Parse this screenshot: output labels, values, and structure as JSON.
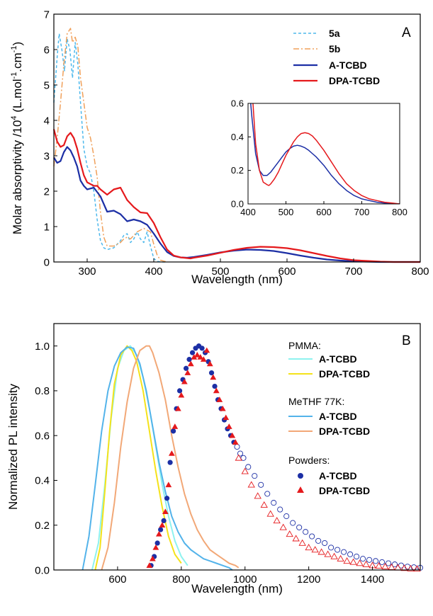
{
  "chart_data": [
    {
      "type": "line",
      "panel_label": "A",
      "xlabel": "Wavelength (nm)",
      "ylabel": "Molar absorptivity /10",
      "ylabel_sup1": "4",
      "ylabel_mid": " (L.mol",
      "ylabel_sup2": "-1",
      "ylabel_mid2": ".cm",
      "ylabel_sup3": "-1",
      "ylabel_end": ")",
      "xlim": [
        250,
        800
      ],
      "ylim": [
        0,
        7
      ],
      "xticks": [
        300,
        400,
        500,
        600,
        700,
        800
      ],
      "yticks": [
        0,
        1,
        2,
        3,
        4,
        5,
        6,
        7
      ],
      "legend_position": "top-right",
      "series": [
        {
          "name": "5a",
          "color": "#4db8ec",
          "dash": "4,3",
          "x": [
            250,
            255,
            258,
            262,
            266,
            270,
            274,
            278,
            282,
            286,
            290,
            295,
            300,
            305,
            310,
            315,
            320,
            325,
            330,
            340,
            350,
            355,
            360,
            365,
            370,
            375,
            380,
            385,
            390,
            395,
            400,
            405,
            410,
            420
          ],
          "y": [
            4.5,
            5.8,
            6.45,
            6.0,
            5.4,
            6.3,
            6.0,
            5.2,
            6.2,
            5.6,
            4.5,
            3.2,
            2.7,
            2.5,
            2.0,
            1.2,
            0.6,
            0.4,
            0.35,
            0.4,
            0.6,
            0.75,
            0.8,
            0.55,
            0.65,
            0.85,
            0.65,
            0.55,
            0.85,
            0.45,
            0.1,
            0.02,
            0,
            0
          ]
        },
        {
          "name": "5b",
          "color": "#f0a05a",
          "dash": "8,3,2,3",
          "x": [
            250,
            255,
            260,
            265,
            270,
            275,
            278,
            282,
            286,
            290,
            295,
            300,
            305,
            310,
            315,
            320,
            325,
            330,
            340,
            350,
            355,
            360,
            365,
            370,
            375,
            380,
            385,
            390,
            395,
            400,
            405,
            410,
            420
          ],
          "y": [
            2.7,
            3.5,
            4.5,
            5.6,
            6.45,
            6.6,
            6.2,
            6.35,
            6.1,
            5.2,
            4.5,
            3.8,
            3.5,
            3.0,
            2.4,
            1.4,
            0.7,
            0.45,
            0.45,
            0.55,
            0.65,
            0.7,
            0.65,
            0.75,
            0.85,
            0.9,
            0.95,
            0.9,
            0.85,
            0.5,
            0.2,
            0.05,
            0
          ]
        },
        {
          "name": "A-TCBD",
          "color": "#1c2fa5",
          "dash": "",
          "x": [
            250,
            255,
            260,
            265,
            270,
            275,
            280,
            285,
            290,
            295,
            300,
            310,
            320,
            330,
            340,
            350,
            360,
            370,
            380,
            390,
            400,
            410,
            420,
            430,
            440,
            450,
            460,
            480,
            500,
            520,
            540,
            560,
            580,
            600,
            620,
            640,
            660,
            680,
            700,
            720,
            740,
            760,
            780,
            800
          ],
          "y": [
            2.95,
            2.8,
            2.85,
            3.1,
            3.25,
            3.15,
            2.95,
            2.7,
            2.3,
            2.15,
            2.05,
            2.1,
            1.85,
            1.42,
            1.45,
            1.35,
            1.15,
            1.2,
            1.15,
            1.05,
            0.8,
            0.52,
            0.28,
            0.17,
            0.13,
            0.12,
            0.14,
            0.2,
            0.27,
            0.32,
            0.35,
            0.34,
            0.31,
            0.25,
            0.18,
            0.12,
            0.07,
            0.04,
            0.02,
            0.01,
            0,
            0,
            0,
            0
          ]
        },
        {
          "name": "DPA-TCBD",
          "color": "#e5191c",
          "dash": "",
          "x": [
            250,
            255,
            260,
            265,
            270,
            275,
            280,
            285,
            290,
            295,
            300,
            310,
            315,
            320,
            330,
            340,
            350,
            360,
            370,
            380,
            390,
            400,
            410,
            420,
            430,
            440,
            450,
            455,
            460,
            480,
            500,
            520,
            540,
            560,
            580,
            600,
            620,
            640,
            660,
            680,
            700,
            720,
            740,
            760,
            780,
            800
          ],
          "y": [
            3.75,
            3.4,
            3.25,
            3.3,
            3.55,
            3.65,
            3.5,
            3.2,
            2.8,
            2.45,
            2.25,
            2.15,
            2.15,
            2.05,
            1.9,
            2.05,
            2.1,
            1.75,
            1.55,
            1.4,
            1.38,
            1.1,
            0.7,
            0.35,
            0.18,
            0.13,
            0.11,
            0.1,
            0.12,
            0.18,
            0.26,
            0.34,
            0.4,
            0.43,
            0.42,
            0.39,
            0.33,
            0.25,
            0.17,
            0.1,
            0.05,
            0.03,
            0.01,
            0,
            0,
            0
          ]
        }
      ],
      "inset": {
        "xlim": [
          400,
          800
        ],
        "ylim": [
          0,
          0.6
        ],
        "xticks": [
          400,
          500,
          600,
          700,
          800
        ],
        "yticks": [
          0.0,
          0.2,
          0.4,
          0.6
        ],
        "ytick_labels": [
          "0.0",
          "0.2",
          "0.4",
          "0.6"
        ],
        "series": [
          {
            "name": "A-TCBD",
            "color": "#1c2fa5",
            "x": [
              400,
              410,
              420,
              430,
              440,
              450,
              460,
              470,
              480,
              490,
              500,
              510,
              520,
              530,
              540,
              550,
              560,
              570,
              580,
              600,
              620,
              640,
              660,
              680,
              700,
              720,
              740,
              760,
              780,
              800
            ],
            "y": [
              0.78,
              0.52,
              0.3,
              0.2,
              0.17,
              0.17,
              0.19,
              0.22,
              0.25,
              0.28,
              0.31,
              0.33,
              0.345,
              0.35,
              0.345,
              0.335,
              0.32,
              0.3,
              0.28,
              0.23,
              0.17,
              0.12,
              0.08,
              0.05,
              0.03,
              0.02,
              0.01,
              0.005,
              0,
              0
            ]
          },
          {
            "name": "DPA-TCBD",
            "color": "#e5191c",
            "x": [
              400,
              410,
              420,
              430,
              440,
              450,
              455,
              460,
              470,
              480,
              490,
              500,
              510,
              520,
              530,
              540,
              550,
              560,
              570,
              580,
              600,
              620,
              640,
              660,
              680,
              700,
              720,
              740,
              760,
              780,
              800
            ],
            "y": [
              1.1,
              0.7,
              0.36,
              0.2,
              0.13,
              0.115,
              0.11,
              0.12,
              0.15,
              0.19,
              0.24,
              0.29,
              0.33,
              0.37,
              0.4,
              0.42,
              0.425,
              0.42,
              0.405,
              0.38,
              0.32,
              0.25,
              0.18,
              0.12,
              0.08,
              0.05,
              0.03,
              0.02,
              0.01,
              0.005,
              0
            ]
          }
        ]
      }
    },
    {
      "type": "line",
      "panel_label": "B",
      "xlabel": "Wavelength (nm)",
      "ylabel": "Normalized PL intensity",
      "xlim": [
        400,
        1550
      ],
      "ylim": [
        0,
        1.1
      ],
      "xticks": [
        600,
        800,
        1000,
        1200,
        1400
      ],
      "yticks": [
        0.0,
        0.2,
        0.4,
        0.6,
        0.8,
        1.0
      ],
      "ytick_labels": [
        "0.0",
        "0.2",
        "0.4",
        "0.6",
        "0.8",
        "1.0"
      ],
      "legend_position": "top-right",
      "legend_groups": [
        {
          "title": "PMMA:",
          "entries": [
            {
              "name": "A-TCBD",
              "color": "#8ef2ef",
              "marker": "line"
            },
            {
              "name": "DPA-TCBD",
              "color": "#f4e21a",
              "marker": "line"
            }
          ]
        },
        {
          "title": "MeTHF 77K:",
          "entries": [
            {
              "name": "A-TCBD",
              "color": "#53b3ea",
              "marker": "line"
            },
            {
              "name": "DPA-TCBD",
              "color": "#f2a877",
              "marker": "line"
            }
          ]
        },
        {
          "title": "Powders:",
          "entries": [
            {
              "name": "A-TCBD",
              "color": "#1c2fa5",
              "marker": "circle"
            },
            {
              "name": "DPA-TCBD",
              "color": "#e5191c",
              "marker": "triangle"
            }
          ]
        }
      ],
      "series": [
        {
          "name": "PMMA: A-TCBD",
          "color": "#8ef2ef",
          "style": "line",
          "x": [
            520,
            540,
            560,
            580,
            600,
            620,
            640,
            660,
            680,
            700,
            720,
            740,
            760,
            780,
            800,
            820
          ],
          "y": [
            0,
            0.12,
            0.38,
            0.68,
            0.9,
            0.98,
            1.0,
            0.96,
            0.86,
            0.72,
            0.55,
            0.38,
            0.24,
            0.13,
            0.06,
            0.02
          ]
        },
        {
          "name": "PMMA: DPA-TCBD",
          "color": "#f4e21a",
          "style": "line",
          "x": [
            530,
            545,
            560,
            575,
            590,
            610,
            630,
            645,
            660,
            680,
            700,
            720,
            740,
            760,
            780,
            800
          ],
          "y": [
            0,
            0.1,
            0.35,
            0.62,
            0.83,
            0.96,
            1.0,
            0.98,
            0.93,
            0.8,
            0.62,
            0.44,
            0.28,
            0.15,
            0.07,
            0.03
          ]
        },
        {
          "name": "MeTHF 77K: A-TCBD",
          "color": "#53b3ea",
          "style": "line",
          "x": [
            490,
            510,
            530,
            550,
            570,
            590,
            610,
            630,
            650,
            670,
            690,
            710,
            730,
            750,
            770,
            790,
            810,
            830,
            850,
            870,
            890,
            910,
            930,
            950,
            960
          ],
          "y": [
            0,
            0.15,
            0.38,
            0.62,
            0.8,
            0.91,
            0.97,
            0.995,
            0.99,
            0.92,
            0.8,
            0.64,
            0.48,
            0.35,
            0.24,
            0.17,
            0.12,
            0.09,
            0.07,
            0.05,
            0.04,
            0.03,
            0.02,
            0.01,
            0
          ]
        },
        {
          "name": "MeTHF 77K: DPA-TCBD",
          "color": "#f2a877",
          "style": "line",
          "x": [
            550,
            570,
            590,
            610,
            630,
            650,
            670,
            690,
            700,
            710,
            730,
            750,
            770,
            790,
            810,
            830,
            850,
            870,
            890,
            910,
            930,
            950,
            970,
            980
          ],
          "y": [
            0,
            0.1,
            0.3,
            0.55,
            0.75,
            0.9,
            0.98,
            1.0,
            1.0,
            0.97,
            0.88,
            0.76,
            0.6,
            0.46,
            0.34,
            0.25,
            0.18,
            0.13,
            0.09,
            0.07,
            0.05,
            0.03,
            0.02,
            0.01
          ]
        },
        {
          "name": "Powders: A-TCBD",
          "color": "#1c2fa5",
          "style": "circle",
          "x": [
            705,
            715,
            725,
            735,
            745,
            755,
            765,
            775,
            785,
            795,
            805,
            815,
            825,
            835,
            845,
            855,
            865,
            875,
            885,
            895,
            905,
            915,
            925,
            935,
            945,
            955,
            965,
            975,
            985,
            995,
            1010,
            1030,
            1050,
            1070,
            1090,
            1110,
            1130,
            1150,
            1170,
            1190,
            1210,
            1230,
            1250,
            1270,
            1290,
            1310,
            1330,
            1350,
            1370,
            1390,
            1410,
            1430,
            1450,
            1470,
            1490,
            1510,
            1530,
            1550
          ],
          "y": [
            0.02,
            0.06,
            0.12,
            0.18,
            0.22,
            0.32,
            0.48,
            0.62,
            0.72,
            0.8,
            0.85,
            0.9,
            0.94,
            0.97,
            0.99,
            1.0,
            0.99,
            0.97,
            0.93,
            0.88,
            0.82,
            0.76,
            0.72,
            0.67,
            0.63,
            0.6,
            0.57,
            0.55,
            0.52,
            0.5,
            0.46,
            0.42,
            0.38,
            0.34,
            0.3,
            0.27,
            0.24,
            0.21,
            0.19,
            0.17,
            0.15,
            0.13,
            0.12,
            0.1,
            0.09,
            0.08,
            0.07,
            0.06,
            0.05,
            0.045,
            0.04,
            0.035,
            0.03,
            0.025,
            0.02,
            0.015,
            0.012,
            0.01
          ],
          "open_from": 975
        },
        {
          "name": "Powders: DPA-TCBD",
          "color": "#e5191c",
          "style": "triangle",
          "x": [
            700,
            710,
            720,
            730,
            740,
            750,
            760,
            770,
            780,
            790,
            800,
            810,
            820,
            830,
            840,
            850,
            860,
            870,
            880,
            890,
            900,
            910,
            920,
            930,
            940,
            950,
            960,
            970,
            980,
            1000,
            1020,
            1040,
            1060,
            1080,
            1100,
            1120,
            1140,
            1160,
            1180,
            1200,
            1220,
            1240,
            1260,
            1280,
            1300,
            1320,
            1340,
            1360,
            1380,
            1400,
            1420,
            1440,
            1460,
            1480,
            1500,
            1520,
            1540
          ],
          "y": [
            0.02,
            0.05,
            0.1,
            0.16,
            0.2,
            0.26,
            0.38,
            0.52,
            0.64,
            0.72,
            0.78,
            0.84,
            0.88,
            0.92,
            0.95,
            0.96,
            0.95,
            0.94,
            0.98,
            0.92,
            0.86,
            0.8,
            0.76,
            0.72,
            0.68,
            0.64,
            0.6,
            0.57,
            0.5,
            0.44,
            0.38,
            0.33,
            0.29,
            0.25,
            0.22,
            0.19,
            0.16,
            0.14,
            0.12,
            0.1,
            0.09,
            0.08,
            0.07,
            0.06,
            0.05,
            0.04,
            0.035,
            0.03,
            0.025,
            0.02,
            0.018,
            0.015,
            0.012,
            0.01,
            0.008,
            0.006,
            0.005
          ],
          "open_from": 975
        }
      ]
    }
  ]
}
